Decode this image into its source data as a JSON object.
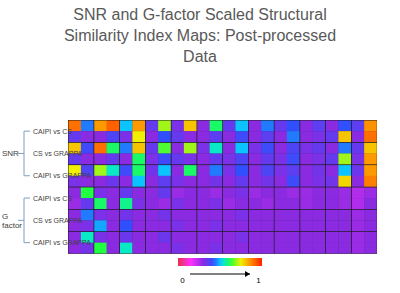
{
  "chart_data": {
    "type": "heatmap",
    "title": "SNR and G-factor Scaled Structural Similarity Index Maps: Post-processed Data",
    "groups": [
      {
        "label": "SNR",
        "rows": [
          {
            "label": "CAIPI vs CS",
            "tiles": [
              [
                0.9,
                0.45,
                0.35,
                0.3
              ],
              [
                0.85,
                0.92,
                0.3,
                0.38
              ],
              [
                0.5,
                0.85,
                0.32,
                0.75
              ],
              [
                0.35,
                0.7,
                0.3,
                0.42
              ],
              [
                0.32,
                0.8,
                0.35,
                0.3
              ],
              [
                0.3,
                0.6,
                0.3,
                0.36
              ],
              [
                0.35,
                0.5,
                0.3,
                0.4
              ],
              [
                0.3,
                0.45,
                0.3,
                0.36
              ],
              [
                0.35,
                0.42,
                0.3,
                0.45
              ],
              [
                0.3,
                0.36,
                0.3,
                0.32
              ],
              [
                0.3,
                0.42,
                0.35,
                0.8
              ],
              [
                0.36,
                0.86,
                0.3,
                0.9
              ]
            ]
          },
          {
            "label": "CS vs GRAPPA",
            "tiles": [
              [
                0.8,
                0.4,
                0.35,
                0.3
              ],
              [
                0.9,
                0.6,
                0.3,
                0.35
              ],
              [
                0.45,
                0.8,
                0.3,
                0.6
              ],
              [
                0.35,
                0.65,
                0.32,
                0.4
              ],
              [
                0.3,
                0.7,
                0.35,
                0.32
              ],
              [
                0.32,
                0.55,
                0.3,
                0.35
              ],
              [
                0.3,
                0.5,
                0.32,
                0.38
              ],
              [
                0.32,
                0.4,
                0.3,
                0.35
              ],
              [
                0.3,
                0.38,
                0.32,
                0.4
              ],
              [
                0.32,
                0.35,
                0.3,
                0.32
              ],
              [
                0.3,
                0.45,
                0.35,
                0.7
              ],
              [
                0.35,
                0.8,
                0.32,
                0.85
              ]
            ]
          },
          {
            "label": "CAIPI vs GRAPPA",
            "tiles": [
              [
                0.75,
                0.38,
                0.32,
                0.3
              ],
              [
                0.7,
                0.55,
                0.3,
                0.34
              ],
              [
                0.4,
                0.6,
                0.3,
                0.5
              ],
              [
                0.33,
                0.5,
                0.3,
                0.36
              ],
              [
                0.3,
                0.6,
                0.32,
                0.3
              ],
              [
                0.3,
                0.45,
                0.3,
                0.33
              ],
              [
                0.32,
                0.42,
                0.3,
                0.35
              ],
              [
                0.3,
                0.38,
                0.3,
                0.33
              ],
              [
                0.32,
                0.36,
                0.3,
                0.4
              ],
              [
                0.3,
                0.33,
                0.3,
                0.32
              ],
              [
                0.3,
                0.5,
                0.33,
                0.78
              ],
              [
                0.34,
                0.85,
                0.3,
                0.88
              ]
            ]
          }
        ]
      },
      {
        "label": "G factor",
        "rows": [
          {
            "label": "CAIPI vs CS",
            "tiles": [
              [
                0.3,
                0.62,
                0.28,
                0.35
              ],
              [
                0.32,
                0.3,
                0.6,
                0.3
              ],
              [
                0.35,
                0.3,
                0.58,
                0.32
              ],
              [
                0.3,
                0.35,
                0.3,
                0.28
              ],
              [
                0.28,
                0.3,
                0.32,
                0.3
              ],
              [
                0.3,
                0.28,
                0.3,
                0.32
              ],
              [
                0.3,
                0.32,
                0.28,
                0.3
              ],
              [
                0.28,
                0.3,
                0.3,
                0.28
              ],
              [
                0.3,
                0.28,
                0.3,
                0.3
              ],
              [
                0.28,
                0.3,
                0.28,
                0.3
              ],
              [
                0.3,
                0.28,
                0.3,
                0.28
              ],
              [
                0.25,
                0.28,
                0.25,
                0.3
              ]
            ]
          },
          {
            "label": "CS vs GRAPPA",
            "tiles": [
              [
                0.3,
                0.45,
                0.3,
                0.32
              ],
              [
                0.32,
                0.3,
                0.48,
                0.3
              ],
              [
                0.33,
                0.3,
                0.42,
                0.3
              ],
              [
                0.3,
                0.33,
                0.3,
                0.3
              ],
              [
                0.3,
                0.3,
                0.32,
                0.3
              ],
              [
                0.3,
                0.3,
                0.3,
                0.32
              ],
              [
                0.3,
                0.32,
                0.3,
                0.3
              ],
              [
                0.3,
                0.3,
                0.3,
                0.3
              ],
              [
                0.3,
                0.3,
                0.3,
                0.3
              ],
              [
                0.3,
                0.3,
                0.3,
                0.3
              ],
              [
                0.3,
                0.3,
                0.3,
                0.3
              ],
              [
                0.28,
                0.3,
                0.28,
                0.3
              ]
            ]
          },
          {
            "label": "CAIPI vs GRAPPA",
            "tiles": [
              [
                0.3,
                0.55,
                0.3,
                0.33
              ],
              [
                0.32,
                0.3,
                0.62,
                0.3
              ],
              [
                0.34,
                0.3,
                0.55,
                0.3
              ],
              [
                0.3,
                0.34,
                0.3,
                0.3
              ],
              [
                0.3,
                0.3,
                0.32,
                0.3
              ],
              [
                0.3,
                0.3,
                0.3,
                0.32
              ],
              [
                0.3,
                0.32,
                0.3,
                0.3
              ],
              [
                0.3,
                0.3,
                0.3,
                0.3
              ],
              [
                0.3,
                0.3,
                0.3,
                0.3
              ],
              [
                0.3,
                0.3,
                0.3,
                0.3
              ],
              [
                0.3,
                0.3,
                0.3,
                0.3
              ],
              [
                0.28,
                0.3,
                0.28,
                0.3
              ]
            ]
          }
        ]
      }
    ],
    "colorbar": {
      "range": [
        0,
        1
      ],
      "ticks": [
        0,
        1
      ]
    }
  }
}
